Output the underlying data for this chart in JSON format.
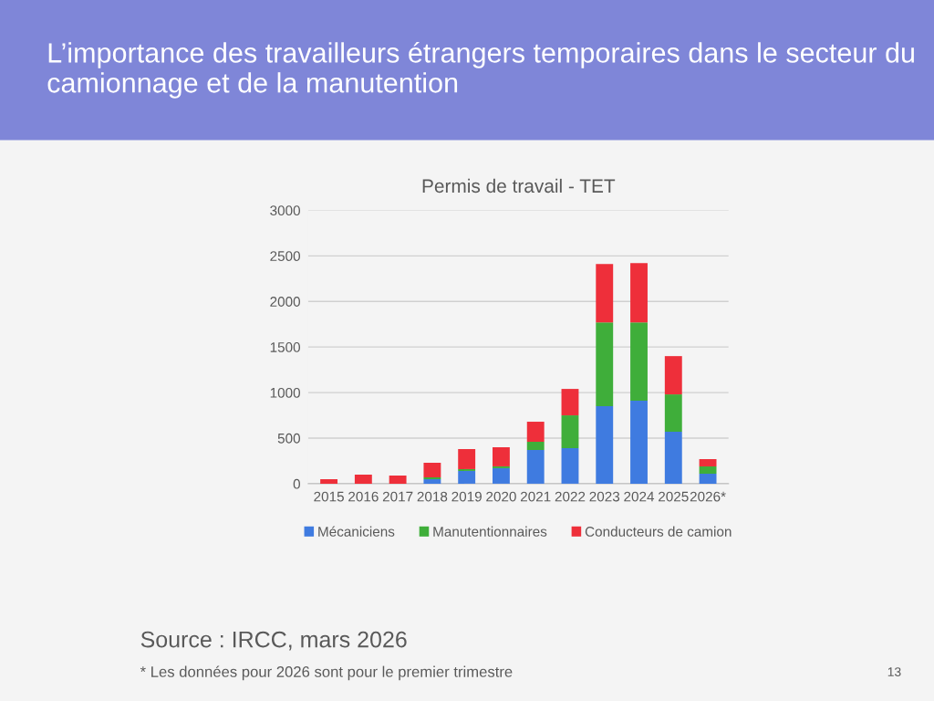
{
  "chart_data": {
    "type": "bar",
    "stacked": true,
    "title": "L’importance des travailleurs étrangers temporaires dans le secteur du camionnage et de la manutention",
    "subtitle": "Permis de travail - TET",
    "categories": [
      "2015",
      "2016",
      "2017",
      "2018",
      "2019",
      "2020",
      "2021",
      "2022",
      "2023",
      "2024",
      "2025",
      "2026*"
    ],
    "series": [
      {
        "name": "Mécaniciens",
        "color": "#3f7be0",
        "values": [
          0,
          0,
          0,
          50,
          140,
          170,
          370,
          390,
          850,
          910,
          570,
          110
        ]
      },
      {
        "name": "Manutentionnaires",
        "color": "#3fae3a",
        "values": [
          0,
          0,
          0,
          20,
          20,
          20,
          90,
          360,
          920,
          860,
          410,
          80
        ]
      },
      {
        "name": "Conducteurs de camion",
        "color": "#ee2f3a",
        "values": [
          50,
          100,
          90,
          160,
          220,
          210,
          220,
          290,
          640,
          650,
          420,
          80
        ]
      }
    ],
    "ylim": [
      0,
      3000
    ],
    "yticks": [
      0,
      500,
      1000,
      1500,
      2000,
      2500,
      3000
    ],
    "grid": "y",
    "legend": "bottom",
    "annotations": [
      "Source : IRCC, mars 2026",
      "* Les données pour 2026 sont pour le premier trimestre",
      "13"
    ]
  }
}
